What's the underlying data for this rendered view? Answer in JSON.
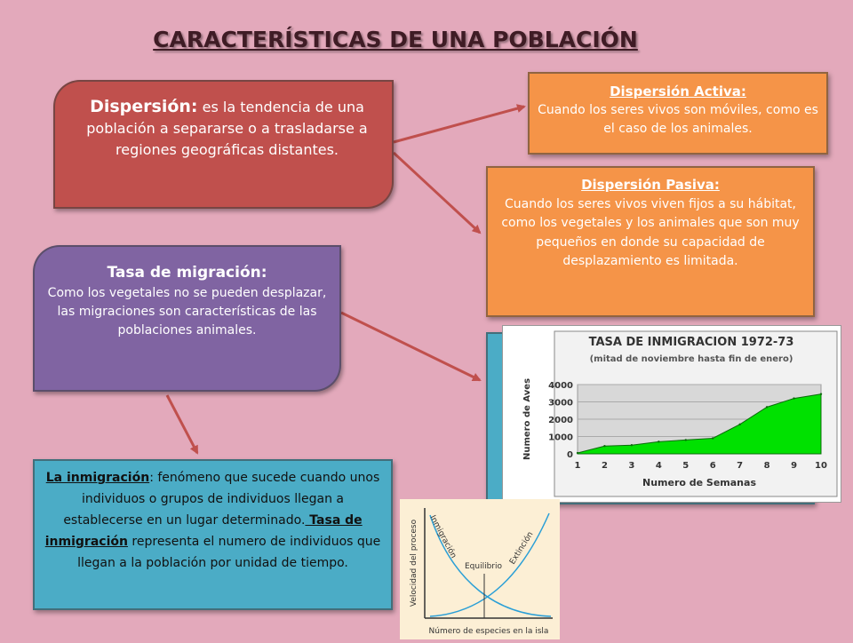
{
  "slide": {
    "title": "CARACTERÍSTICAS DE UNA POBLACIÓN"
  },
  "dispersion": {
    "head": "Dispersión:",
    "text": " es la tendencia de una población a separarse o a trasladarse a regiones geográficas distantes."
  },
  "dispersion_activa": {
    "head": "Dispersión Activa:",
    "text": "Cuando los seres vivos son móviles, como es el caso de los animales."
  },
  "dispersion_pasiva": {
    "head": "Dispersión Pasiva:",
    "text": "Cuando los seres vivos viven fijos a su hábitat, como los vegetales y los animales que son muy pequeños en donde su capacidad de desplazamiento es limitada."
  },
  "migracion": {
    "head": "Tasa de migración:",
    "text": "Como los vegetales no se pueden desplazar, las migraciones son características de las poblaciones animales."
  },
  "inmigracion": {
    "head": "La inmigración",
    "text1": ": fenómeno que sucede cuando unos individuos o grupos de individuos llegan a establecerse en un lugar determinado.",
    "head2": " Tasa de inmigración",
    "text2": " representa el numero de individuos que llegan a la población por unidad de tiempo."
  },
  "colors": {
    "background": "#e3a9bb",
    "dispersion_box": "#c0504d",
    "orange_box": "#f59448",
    "purple_box": "#8064a2",
    "blue_box": "#4bacc6",
    "arrow": "#c0504d",
    "chart_fill": "#00e100"
  },
  "chart_data": [
    {
      "type": "area",
      "title": "TASA DE INMIGRACION 1972-73",
      "subtitle": "(mitad de noviembre hasta fin de enero)",
      "xlabel": "Numero de Semanas",
      "ylabel": "Numero de Aves",
      "x": [
        1,
        2,
        3,
        4,
        5,
        6,
        7,
        8,
        9,
        10
      ],
      "values": [
        50,
        450,
        500,
        700,
        800,
        900,
        1700,
        2700,
        3200,
        3450
      ],
      "xlim": [
        1,
        10
      ],
      "ylim": [
        0,
        4000
      ],
      "y_ticks": [
        0,
        1000,
        2000,
        3000,
        4000
      ],
      "grid": true
    },
    {
      "type": "line",
      "xlabel": "Número de especies en la isla",
      "ylabel": "Velocidad del proceso",
      "series_labels": [
        "Inmigración",
        "Extinción"
      ],
      "annotation": "Equilibrio"
    }
  ]
}
